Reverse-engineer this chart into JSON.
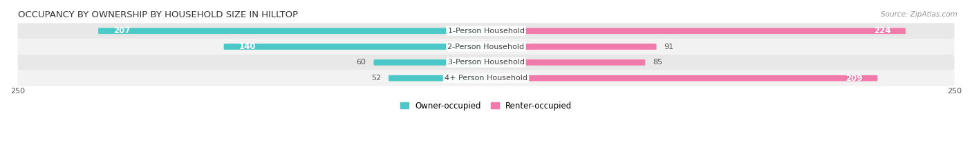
{
  "title": "OCCUPANCY BY OWNERSHIP BY HOUSEHOLD SIZE IN HILLTOP",
  "source": "Source: ZipAtlas.com",
  "categories": [
    "1-Person Household",
    "2-Person Household",
    "3-Person Household",
    "4+ Person Household"
  ],
  "owner_values": [
    207,
    140,
    60,
    52
  ],
  "renter_values": [
    224,
    91,
    85,
    209
  ],
  "owner_color": "#4DC8C8",
  "renter_color": "#F07BAA",
  "xlim": 250,
  "bar_height": 0.38,
  "label_fontsize": 8.0,
  "title_fontsize": 9.5,
  "axis_label_fontsize": 8,
  "legend_fontsize": 8.5,
  "value_fontsize_large": 8.5,
  "value_fontsize_small": 8.0,
  "row_colors": [
    "#e8e8e8",
    "#f2f2f2",
    "#e8e8e8",
    "#f2f2f2"
  ],
  "large_threshold": 100
}
